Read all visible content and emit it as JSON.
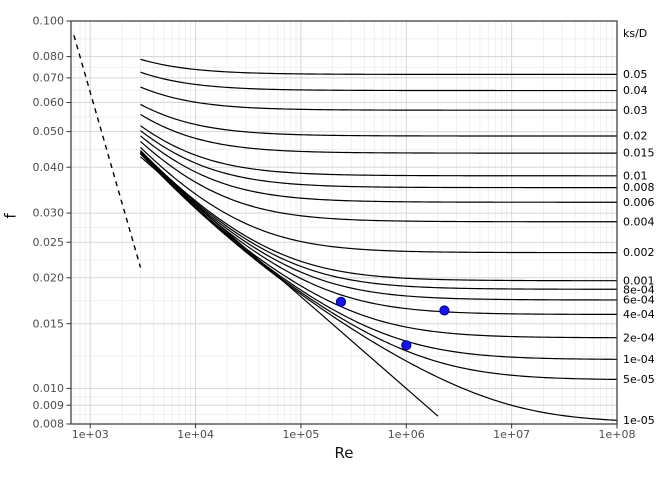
{
  "chart_data": {
    "type": "line",
    "xlabel": "Re",
    "ylabel": "f",
    "right_axis_header": "ks/D",
    "x_scale": "log10",
    "y_scale": "log10",
    "x_domain": [
      657,
      100000000
    ],
    "y_domain": [
      0.008,
      0.1
    ],
    "grid": "on",
    "x_ticks": [
      {
        "label": "1e+03",
        "value": 1000
      },
      {
        "label": "1e+04",
        "value": 10000
      },
      {
        "label": "1e+05",
        "value": 100000
      },
      {
        "label": "1e+06",
        "value": 1000000
      },
      {
        "label": "1e+07",
        "value": 10000000
      },
      {
        "label": "1e+08",
        "value": 100000000
      }
    ],
    "y_ticks": [
      {
        "label": "0.100",
        "value": 0.1
      },
      {
        "label": "0.080",
        "value": 0.08
      },
      {
        "label": "0.070",
        "value": 0.07
      },
      {
        "label": "0.060",
        "value": 0.06
      },
      {
        "label": "0.050",
        "value": 0.05
      },
      {
        "label": "0.040",
        "value": 0.04
      },
      {
        "label": "0.030",
        "value": 0.03
      },
      {
        "label": "0.025",
        "value": 0.025
      },
      {
        "label": "0.020",
        "value": 0.02
      },
      {
        "label": "0.015",
        "value": 0.015
      },
      {
        "label": "0.010",
        "value": 0.01
      },
      {
        "label": "0.009",
        "value": 0.009
      },
      {
        "label": "0.008",
        "value": 0.008
      }
    ],
    "curve_family": {
      "model": "colebrook",
      "formula": "1/sqrt(f) = -2*log10(ksD/3.7 + 2.51/(Re*sqrt(f)))",
      "re_range": [
        3000,
        100000000
      ],
      "ks_over_D": [
        {
          "label": "0.05",
          "value": 0.05
        },
        {
          "label": "0.04",
          "value": 0.04
        },
        {
          "label": "0.03",
          "value": 0.03
        },
        {
          "label": "0.02",
          "value": 0.02
        },
        {
          "label": "0.015",
          "value": 0.015
        },
        {
          "label": "0.01",
          "value": 0.01
        },
        {
          "label": "0.008",
          "value": 0.008
        },
        {
          "label": "0.006",
          "value": 0.006
        },
        {
          "label": "0.004",
          "value": 0.004
        },
        {
          "label": "0.002",
          "value": 0.002
        },
        {
          "label": "0.001",
          "value": 0.001
        },
        {
          "label": "8e-04",
          "value": 0.0008
        },
        {
          "label": "6e-04",
          "value": 0.0006
        },
        {
          "label": "4e-04",
          "value": 0.0004
        },
        {
          "label": "2e-04",
          "value": 0.0002
        },
        {
          "label": "1e-04",
          "value": 0.0001
        },
        {
          "label": "5e-05",
          "value": 5e-05
        },
        {
          "label": "1e-05",
          "value": 1e-05
        }
      ]
    },
    "laminar_line": {
      "formula": "f = 64/Re",
      "re_range": [
        700,
        3000
      ],
      "style": "dashed"
    },
    "smooth_turbulent_line": {
      "formula": "f = 0.316*Re^-0.25",
      "re_range": [
        3000,
        2000000
      ],
      "style": "solid"
    },
    "points": [
      {
        "re": 240000,
        "f": 0.0172
      },
      {
        "re": 1000000,
        "f": 0.0131
      },
      {
        "re": 2300000,
        "f": 0.0163
      }
    ],
    "colors": {
      "curve": "#000000",
      "laminar": "#000000",
      "point_fill": "#1414e6",
      "point_stroke": "#00008b",
      "grid_major": "#d6d6d6",
      "grid_minor": "#ececec",
      "panel_border": "#333333",
      "tick": "#333333",
      "axis_text": "#4d4d4d",
      "curve_label_text": "#000000"
    }
  }
}
